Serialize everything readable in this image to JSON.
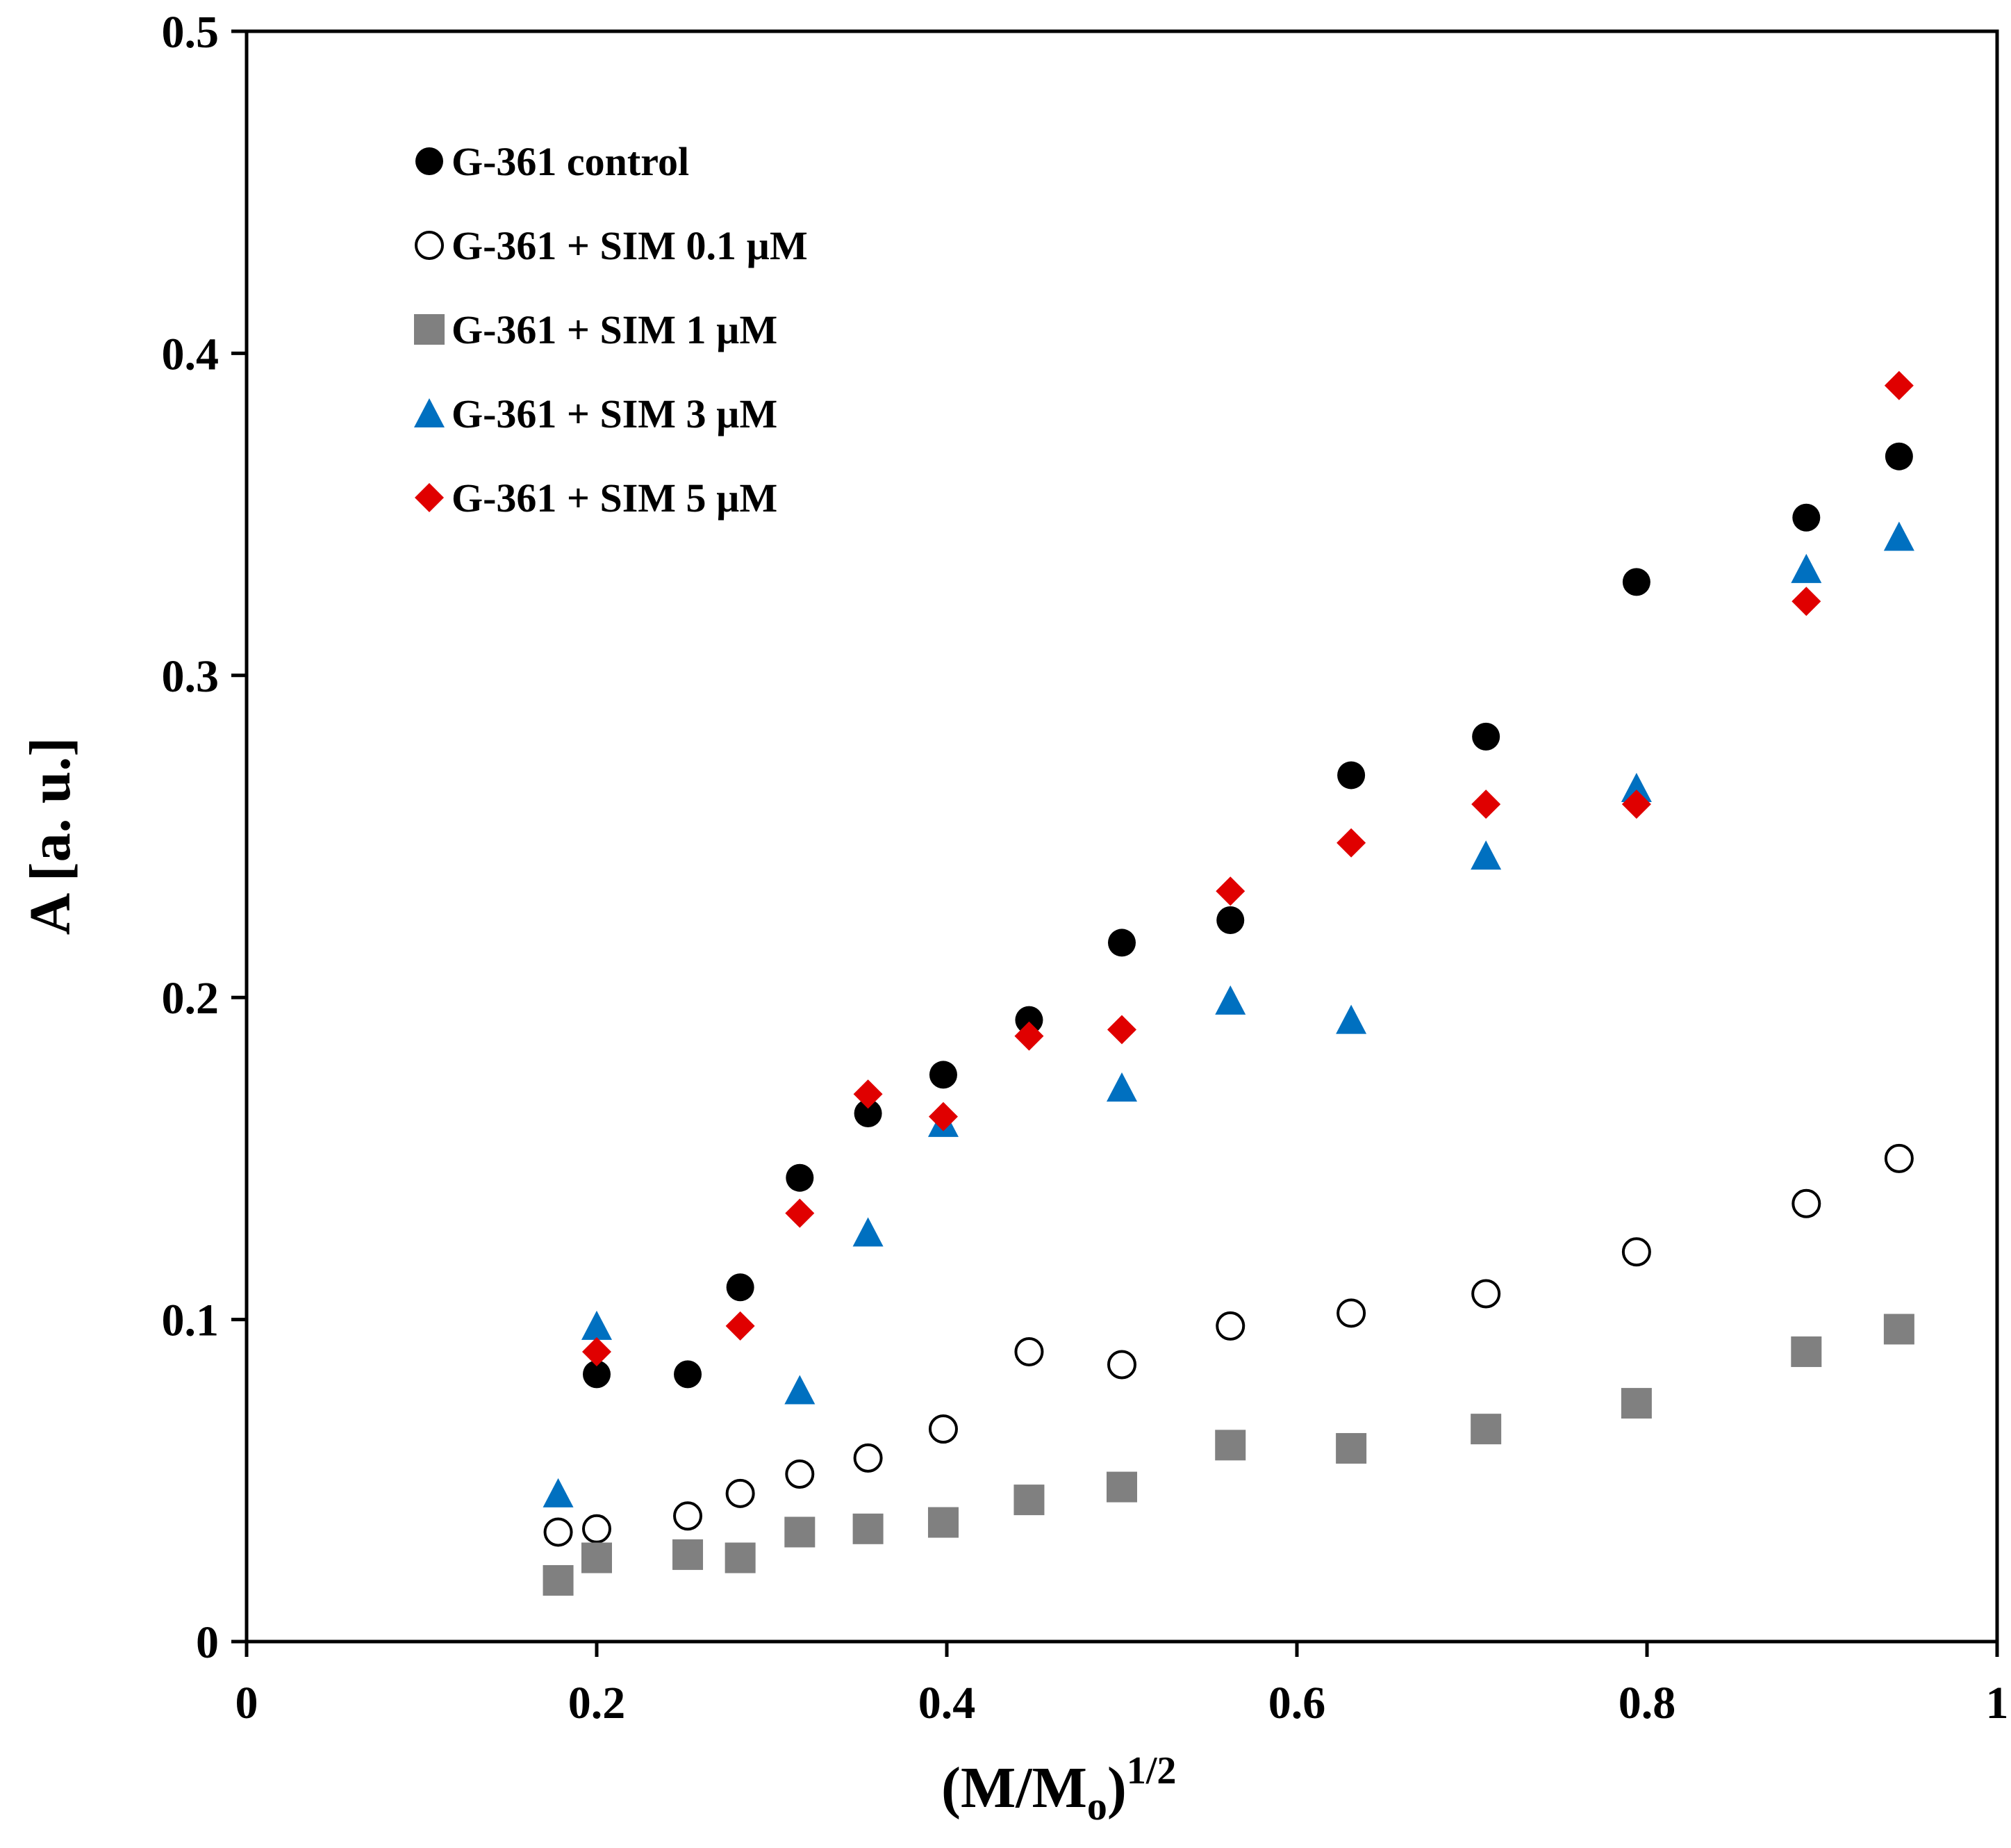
{
  "chart_data": {
    "type": "scatter",
    "xlabel": "(M/M",
    "xlabel_sub": "o",
    "xlabel_close": ")",
    "xlabel_sup": "1/2",
    "ylabel": "A [a. u.]",
    "xlim": [
      0,
      1
    ],
    "ylim": [
      0,
      0.5
    ],
    "x_ticks": [
      {
        "v": 0,
        "label": "0"
      },
      {
        "v": 0.2,
        "label": "0.2"
      },
      {
        "v": 0.4,
        "label": "0.4"
      },
      {
        "v": 0.6,
        "label": "0.6"
      },
      {
        "v": 0.8,
        "label": "0.8"
      },
      {
        "v": 1,
        "label": "1"
      }
    ],
    "y_ticks": [
      {
        "v": 0,
        "label": "0"
      },
      {
        "v": 0.1,
        "label": "0.1"
      },
      {
        "v": 0.2,
        "label": "0.2"
      },
      {
        "v": 0.3,
        "label": "0.3"
      },
      {
        "v": 0.4,
        "label": "0.4"
      },
      {
        "v": 0.5,
        "label": "0.5"
      }
    ],
    "grid": false,
    "legend_position": "top-left",
    "series": [
      {
        "name": "G-361 control",
        "marker": "circle-filled",
        "color": "#000000",
        "points": [
          [
            0.2,
            0.083
          ],
          [
            0.252,
            0.083
          ],
          [
            0.282,
            0.11
          ],
          [
            0.316,
            0.144
          ],
          [
            0.355,
            0.164
          ],
          [
            0.398,
            0.176
          ],
          [
            0.447,
            0.193
          ],
          [
            0.5,
            0.217
          ],
          [
            0.562,
            0.224
          ],
          [
            0.631,
            0.269
          ],
          [
            0.708,
            0.281
          ],
          [
            0.794,
            0.329
          ],
          [
            0.891,
            0.349
          ],
          [
            0.944,
            0.368
          ]
        ]
      },
      {
        "name": "G-361 + SIM 0.1 µM",
        "marker": "circle-open",
        "color": "#000000",
        "points": [
          [
            0.178,
            0.034
          ],
          [
            0.2,
            0.035
          ],
          [
            0.252,
            0.039
          ],
          [
            0.282,
            0.046
          ],
          [
            0.316,
            0.052
          ],
          [
            0.355,
            0.057
          ],
          [
            0.398,
            0.066
          ],
          [
            0.447,
            0.09
          ],
          [
            0.5,
            0.086
          ],
          [
            0.562,
            0.098
          ],
          [
            0.631,
            0.102
          ],
          [
            0.708,
            0.108
          ],
          [
            0.794,
            0.121
          ],
          [
            0.891,
            0.136
          ],
          [
            0.944,
            0.15
          ]
        ]
      },
      {
        "name": "G-361 + SIM 1 µM",
        "marker": "square",
        "color": "#808080",
        "points": [
          [
            0.178,
            0.019
          ],
          [
            0.2,
            0.026
          ],
          [
            0.252,
            0.027
          ],
          [
            0.282,
            0.026
          ],
          [
            0.316,
            0.034
          ],
          [
            0.355,
            0.035
          ],
          [
            0.398,
            0.037
          ],
          [
            0.447,
            0.044
          ],
          [
            0.5,
            0.048
          ],
          [
            0.562,
            0.061
          ],
          [
            0.631,
            0.06
          ],
          [
            0.708,
            0.066
          ],
          [
            0.794,
            0.074
          ],
          [
            0.891,
            0.09
          ],
          [
            0.944,
            0.097
          ]
        ]
      },
      {
        "name": "G-361 + SIM 3 µM",
        "marker": "triangle",
        "color": "#0070c0",
        "points": [
          [
            0.178,
            0.046
          ],
          [
            0.2,
            0.098
          ],
          [
            0.316,
            0.078
          ],
          [
            0.355,
            0.127
          ],
          [
            0.398,
            0.161
          ],
          [
            0.5,
            0.172
          ],
          [
            0.562,
            0.199
          ],
          [
            0.631,
            0.193
          ],
          [
            0.708,
            0.244
          ],
          [
            0.794,
            0.265
          ],
          [
            0.891,
            0.333
          ],
          [
            0.944,
            0.343
          ]
        ]
      },
      {
        "name": "G-361 + SIM 5 µM",
        "marker": "diamond",
        "color": "#e00000",
        "points": [
          [
            0.2,
            0.09
          ],
          [
            0.282,
            0.098
          ],
          [
            0.316,
            0.133
          ],
          [
            0.355,
            0.17
          ],
          [
            0.398,
            0.163
          ],
          [
            0.447,
            0.188
          ],
          [
            0.5,
            0.19
          ],
          [
            0.562,
            0.233
          ],
          [
            0.631,
            0.248
          ],
          [
            0.708,
            0.26
          ],
          [
            0.794,
            0.26
          ],
          [
            0.891,
            0.323
          ],
          [
            0.944,
            0.39
          ]
        ]
      }
    ]
  }
}
